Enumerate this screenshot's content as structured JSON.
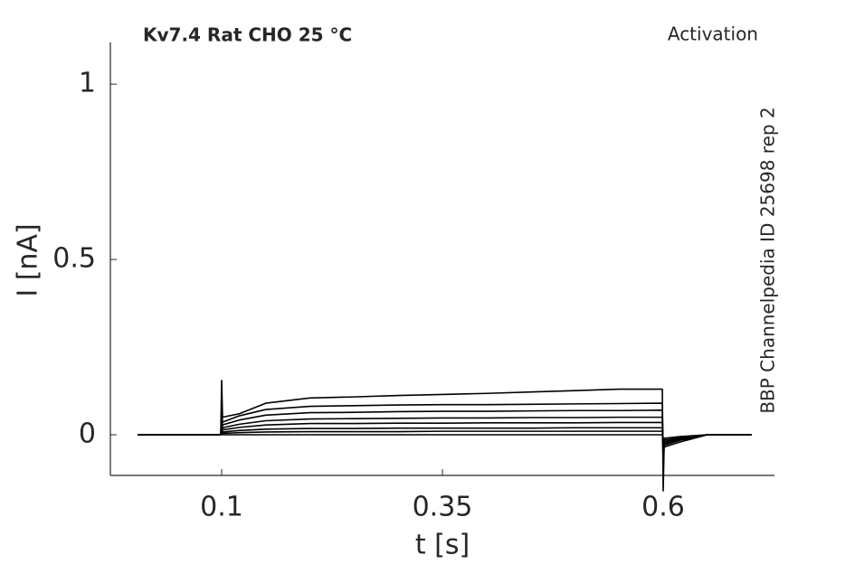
{
  "chart_data": {
    "type": "line",
    "title": "Kv7.4  Rat  CHO  25 °C",
    "subtitle": "Activation",
    "annotation": "BBP Channelpedia ID 25698 rep 2",
    "xlabel": "t [s]",
    "ylabel": "I [nA]",
    "xlim": [
      -0.026,
      0.726
    ],
    "ylim": [
      -0.116,
      1.119
    ],
    "xticks": [
      0.1,
      0.35,
      0.6
    ],
    "yticks": [
      0,
      0.5,
      1
    ],
    "grid": false,
    "color": "#000000",
    "x": [
      0.005,
      0.05,
      0.099,
      0.1,
      0.101,
      0.12,
      0.15,
      0.2,
      0.25,
      0.3,
      0.35,
      0.4,
      0.45,
      0.5,
      0.55,
      0.599,
      0.6,
      0.601,
      0.62,
      0.65,
      0.7
    ],
    "series": [
      {
        "values": [
          0,
          0,
          0,
          0.01,
          0,
          0,
          0,
          0,
          0,
          0,
          0,
          0,
          0,
          0,
          0,
          0,
          -0.02,
          -0.01,
          -0.005,
          0,
          0
        ]
      },
      {
        "values": [
          0,
          0,
          0,
          0.02,
          0.004,
          0.006,
          0.008,
          0.009,
          0.009,
          0.009,
          0.01,
          0.01,
          0.01,
          0.01,
          0.01,
          0.01,
          -0.03,
          -0.015,
          -0.008,
          0,
          0
        ]
      },
      {
        "values": [
          0,
          0,
          0,
          0.03,
          0.008,
          0.012,
          0.016,
          0.018,
          0.018,
          0.019,
          0.019,
          0.019,
          0.019,
          0.02,
          0.02,
          0.02,
          -0.04,
          -0.02,
          -0.01,
          0,
          0
        ]
      },
      {
        "values": [
          0,
          0,
          0,
          0.04,
          0.014,
          0.021,
          0.028,
          0.032,
          0.032,
          0.033,
          0.033,
          0.034,
          0.034,
          0.034,
          0.035,
          0.035,
          -0.05,
          -0.02,
          -0.01,
          0,
          0
        ]
      },
      {
        "values": [
          0,
          0,
          0,
          0.05,
          0.02,
          0.03,
          0.04,
          0.045,
          0.046,
          0.047,
          0.048,
          0.048,
          0.049,
          0.049,
          0.05,
          0.05,
          -0.06,
          -0.025,
          -0.01,
          0,
          0
        ]
      },
      {
        "values": [
          0,
          0,
          0,
          0.06,
          0.028,
          0.042,
          0.056,
          0.063,
          0.064,
          0.066,
          0.067,
          0.067,
          0.068,
          0.069,
          0.069,
          0.07,
          -0.08,
          -0.03,
          -0.012,
          0,
          0
        ]
      },
      {
        "values": [
          0,
          0,
          0,
          0.08,
          0.036,
          0.054,
          0.072,
          0.081,
          0.083,
          0.085,
          0.086,
          0.086,
          0.087,
          0.088,
          0.089,
          0.09,
          -0.1,
          -0.03,
          -0.015,
          0,
          0
        ]
      },
      {
        "values": [
          0,
          0,
          0,
          0.155,
          0.05,
          0.06,
          0.09,
          0.105,
          0.108,
          0.112,
          0.115,
          0.118,
          0.122,
          0.126,
          0.13,
          0.13,
          -0.16,
          -0.035,
          -0.02,
          0,
          0
        ]
      }
    ]
  }
}
